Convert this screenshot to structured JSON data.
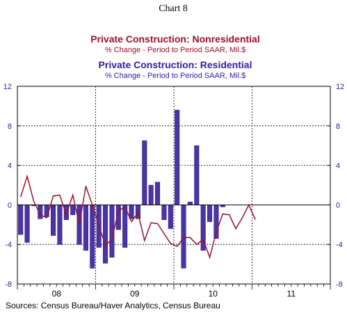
{
  "page_title": "Chart 8",
  "nonres_title": "Private Construction: Nonresidential",
  "nonres_subtitle": "% Change - Period to Period     SAAR, Mil.$",
  "res_title": "Private Construction: Residential",
  "res_subtitle": "% Change - Period to Period     SAAR, Mil.$",
  "source": "Sources:  Census Bureau/Haver Analytics, Census Bureau",
  "colors": {
    "nonres": "#9b1030",
    "res": "#4b33a8",
    "axis_text": "#3020a0",
    "text": "#000000"
  },
  "chart_data": {
    "type": "bar",
    "x_labels": [
      "08",
      "09",
      "10",
      "11"
    ],
    "ylim": [
      -8,
      12
    ],
    "yticks": [
      12,
      8,
      4,
      0,
      -4,
      -8
    ],
    "grid": true,
    "series": [
      {
        "name": "Private Construction: Residential",
        "type": "bar",
        "values": [
          -3.0,
          -3.8,
          -0.1,
          -1.4,
          -1.2,
          -3.1,
          -4.0,
          -1.5,
          -1.0,
          -4.0,
          -4.6,
          -6.4,
          -4.3,
          -5.9,
          -5.3,
          -2.5,
          -4.3,
          -1.4,
          -1.4,
          6.5,
          2.0,
          2.3,
          -1.5,
          -2.4,
          9.6,
          -6.4,
          0.3,
          6.0,
          -4.6,
          -1.7,
          -3.4,
          -0.2,
          null,
          null,
          null,
          null,
          null,
          null,
          null,
          null,
          null,
          null,
          null,
          null,
          null,
          null,
          null,
          null
        ]
      },
      {
        "name": "Private Construction: Nonresidential",
        "type": "line",
        "values": [
          0.8,
          2.9,
          0.4,
          -1.0,
          -1.3,
          0.9,
          1.0,
          -1.0,
          1.0,
          -2.0,
          1.9,
          0.0,
          -2.1,
          -4.1,
          -3.5,
          -0.6,
          -0.2,
          -1.7,
          -0.8,
          -3.6,
          -1.8,
          -1.9,
          -2.9,
          -3.9,
          -4.2,
          -3.3,
          -3.3,
          -4.0,
          -3.5,
          -5.3,
          -2.8,
          -0.9,
          -1.0,
          -2.4,
          -1.3,
          0.0,
          -1.5,
          null,
          null,
          null,
          null,
          null,
          null,
          null,
          null,
          null,
          null,
          null
        ]
      }
    ]
  }
}
